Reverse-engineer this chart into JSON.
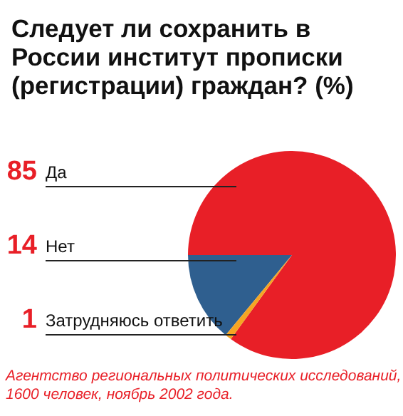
{
  "chart_data": {
    "type": "pie",
    "title": "Следует ли сохранить в России институт прописки (регистрации) граждан? (%)",
    "categories": [
      "Да",
      "Нет",
      "Затрудняюсь ответить"
    ],
    "values": [
      85,
      14,
      1
    ],
    "colors": [
      "#e81f27",
      "#2f5f8f",
      "#f5a623"
    ],
    "data_labels": true,
    "annotations": [
      "Агентство региональных политических исследований, 1600 человек, ноябрь 2002 года."
    ]
  }
}
